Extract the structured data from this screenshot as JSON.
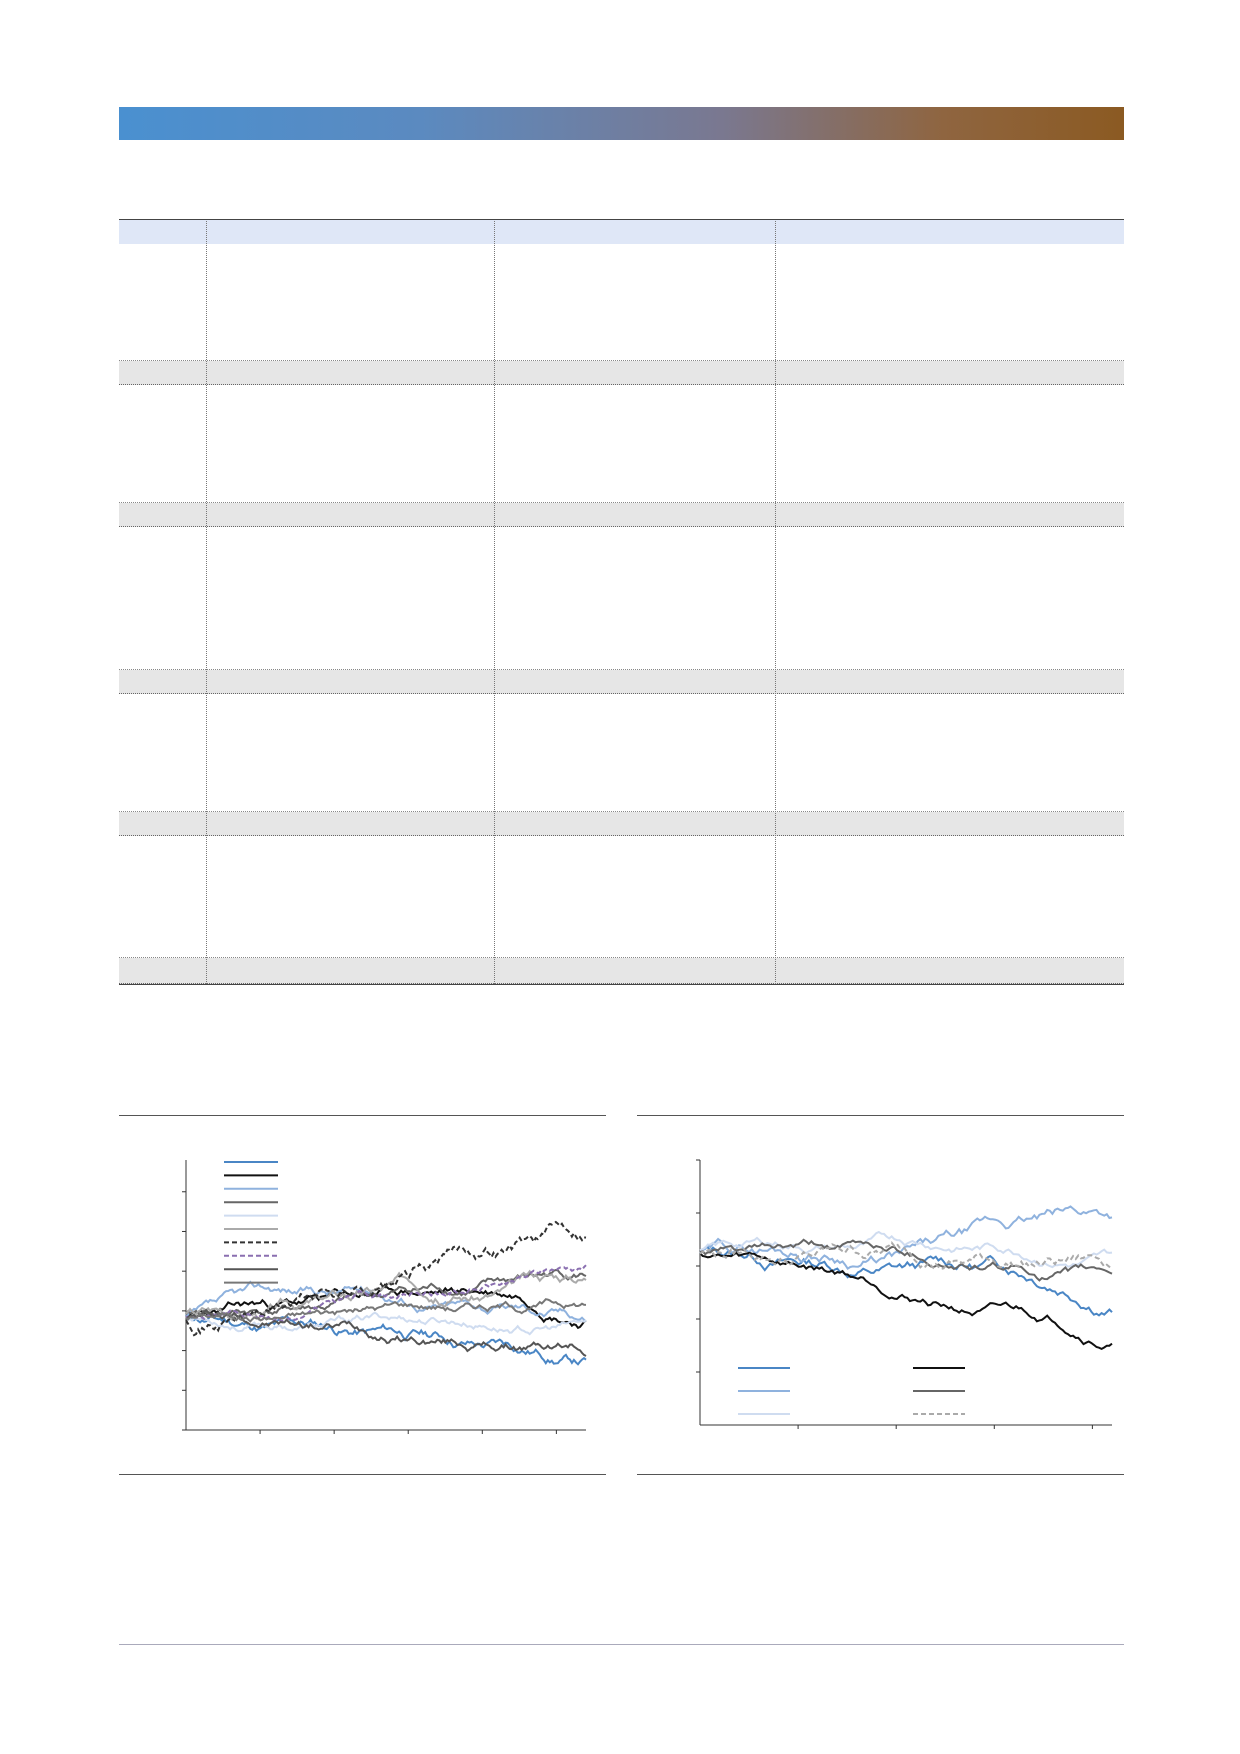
{
  "header": {
    "banner_colors": [
      "#4a90d0",
      "#7a7890",
      "#8b5a22"
    ]
  },
  "table": {
    "columns": [
      "",
      "",
      "",
      ""
    ],
    "rows": [
      {
        "type": "header"
      },
      {
        "type": "body"
      },
      {
        "type": "band"
      },
      {
        "type": "body"
      },
      {
        "type": "band"
      },
      {
        "type": "body"
      },
      {
        "type": "band"
      },
      {
        "type": "body"
      },
      {
        "type": "band"
      },
      {
        "type": "body"
      },
      {
        "type": "band"
      }
    ]
  },
  "chart_data": [
    {
      "type": "line",
      "title": "",
      "xlabel": "",
      "ylabel": "",
      "grid": false,
      "legend": "top-left",
      "series": [
        {
          "color": "#4a86c5",
          "style": "solid"
        },
        {
          "color": "#111111",
          "style": "solid"
        },
        {
          "color": "#8fb2de",
          "style": "solid"
        },
        {
          "color": "#666666",
          "style": "solid"
        },
        {
          "color": "#cfdcf0",
          "style": "solid"
        },
        {
          "color": "#aaaaaa",
          "style": "solid"
        },
        {
          "color": "#333333",
          "style": "dashed"
        },
        {
          "color": "#8a6fb0",
          "style": "dashed"
        },
        {
          "color": "#555555",
          "style": "solid"
        },
        {
          "color": "#777777",
          "style": "solid"
        }
      ]
    },
    {
      "type": "line",
      "title": "",
      "xlabel": "",
      "ylabel": "",
      "grid": false,
      "legend": "bottom",
      "series": [
        {
          "color": "#4a86c5",
          "style": "solid"
        },
        {
          "color": "#8fb2de",
          "style": "solid"
        },
        {
          "color": "#cfdcf0",
          "style": "solid"
        },
        {
          "color": "#111111",
          "style": "solid"
        },
        {
          "color": "#666666",
          "style": "solid"
        },
        {
          "color": "#aaaaaa",
          "style": "dashed"
        }
      ]
    }
  ]
}
